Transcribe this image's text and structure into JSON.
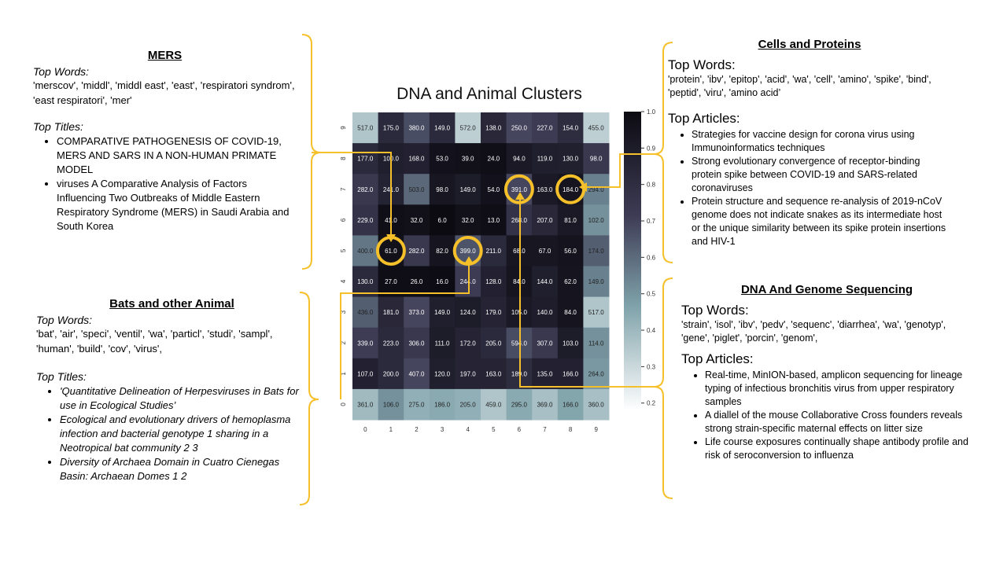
{
  "mers": {
    "heading": "MERS",
    "words_label": "Top Words:",
    "words": "'merscov', 'middl', 'middl east', 'east', 'respiratori syndrom', 'east respiratori', 'mer'",
    "titles_label": "Top Titles:",
    "titles": [
      "COMPARATIVE PATHOGENESIS OF COVID-19, MERS AND SARS IN A NON-HUMAN PRIMATE MODEL",
      "viruses A Comparative Analysis of Factors Influencing Two Outbreaks of Middle Eastern Respiratory Syndrome (MERS) in Saudi Arabia and South Korea"
    ]
  },
  "bats": {
    "heading": "Bats and other Animal",
    "words_label": "Top Words:",
    "words": "'bat', 'air', 'speci', 'ventil', 'wa', 'particl', 'studi', 'sampl', 'human', 'build', 'cov', 'virus',",
    "titles_label": "Top Titles:",
    "titles": [
      "'Quantitative Delineation of Herpesviruses in Bats for use in Ecological Studies’",
      "Ecological and evolutionary drivers of hemoplasma infection and bacterial genotype 1 sharing in a Neotropical bat community 2 3",
      "Diversity of Archaea Domain in Cuatro Cienegas Basin: Archaean Domes 1 2"
    ]
  },
  "cells": {
    "heading": "Cells and Proteins",
    "words_label": "Top Words:",
    "words": "'protein', 'ibv', 'epitop', 'acid', 'wa', 'cell', 'amino', 'spike', 'bind', 'peptid', 'viru', 'amino acid’",
    "titles_label": "Top Articles:",
    "titles": [
      "Strategies for vaccine design for corona virus using Immunoinformatics techniques",
      "Strong evolutionary convergence of receptor-binding protein spike between COVID-19 and SARS-related coronaviruses",
      "Protein structure and sequence re-analysis of 2019-nCoV genome does not indicate snakes as its intermediate host or the unique similarity between its spike protein insertions and HIV-1"
    ]
  },
  "dna": {
    "heading": "DNA And Genome Sequencing",
    "words_label": "Top Words:",
    "words": "'strain', 'isol', 'ibv', 'pedv', 'sequenc', 'diarrhea', 'wa', 'genotyp', 'gene', 'piglet', 'porcin', 'genom',",
    "titles_label": "Top Articles:",
    "titles": [
      "Real-time, MinION-based, amplicon sequencing for lineage typing of infectious bronchitis virus from upper respiratory samples",
      "A diallel of the mouse Collaborative Cross founders reveals strong strain-specific maternal effects on litter size",
      "Life course exposures continually shape antibody profile and risk of seroconversion to influenza"
    ]
  },
  "colors": {
    "accent": "#f5c02a",
    "cell_text_dark": "#ffffff",
    "cell_text_light": "#222222"
  },
  "chart_data": {
    "type": "heatmap",
    "title": "DNA and Animal Clusters",
    "x_ticks": [
      "0",
      "1",
      "2",
      "3",
      "4",
      "5",
      "6",
      "7",
      "8",
      "9"
    ],
    "y_ticks": [
      "9",
      "8",
      "7",
      "6",
      "5",
      "4",
      "3",
      "2",
      "1",
      "0"
    ],
    "rows": [
      [
        "517.0",
        "175.0",
        "380.0",
        "149.0",
        "572.0",
        "138.0",
        "250.0",
        "227.0",
        "154.0",
        "455.0"
      ],
      [
        "177.0",
        "100.0",
        "168.0",
        "53.0",
        "39.0",
        "24.0",
        "94.0",
        "119.0",
        "130.0",
        "98.0"
      ],
      [
        "282.0",
        "241.0",
        "503.0",
        "98.0",
        "149.0",
        "54.0",
        "391.0",
        "163.0",
        "184.0",
        "294.0"
      ],
      [
        "229.0",
        "41.0",
        "32.0",
        "6.0",
        "32.0",
        "13.0",
        "268.0",
        "207.0",
        "81.0",
        "102.0"
      ],
      [
        "400.0",
        "61.0",
        "282.0",
        "82.0",
        "399.0",
        "211.0",
        "68.0",
        "67.0",
        "56.0",
        "174.0"
      ],
      [
        "130.0",
        "27.0",
        "26.0",
        "16.0",
        "244.0",
        "128.0",
        "84.0",
        "144.0",
        "62.0",
        "149.0"
      ],
      [
        "436.0",
        "181.0",
        "373.0",
        "149.0",
        "124.0",
        "179.0",
        "105.0",
        "140.0",
        "84.0",
        "517.0"
      ],
      [
        "339.0",
        "223.0",
        "306.0",
        "111.0",
        "172.0",
        "205.0",
        "594.0",
        "307.0",
        "103.0",
        "114.0"
      ],
      [
        "107.0",
        "200.0",
        "407.0",
        "120.0",
        "197.0",
        "163.0",
        "189.0",
        "135.0",
        "166.0",
        "264.0"
      ],
      [
        "361.0",
        "106.0",
        "275.0",
        "186.0",
        "205.0",
        "459.0",
        "295.0",
        "369.0",
        "166.0",
        "360.0"
      ]
    ],
    "shade": [
      [
        0.22,
        0.78,
        0.6,
        0.78,
        0.18,
        0.8,
        0.62,
        0.66,
        0.76,
        0.18
      ],
      [
        0.78,
        0.86,
        0.84,
        0.95,
        0.96,
        0.97,
        0.9,
        0.86,
        0.85,
        0.68
      ],
      [
        0.68,
        0.83,
        0.52,
        0.92,
        0.88,
        0.95,
        0.62,
        0.9,
        0.93,
        0.45
      ],
      [
        0.72,
        0.97,
        0.96,
        1.0,
        0.96,
        0.98,
        0.72,
        0.8,
        0.9,
        0.4
      ],
      [
        0.48,
        0.96,
        0.68,
        0.93,
        0.58,
        0.78,
        0.92,
        0.92,
        0.94,
        0.55
      ],
      [
        0.78,
        0.98,
        0.98,
        0.99,
        0.66,
        0.84,
        0.93,
        0.86,
        0.93,
        0.45
      ],
      [
        0.55,
        0.8,
        0.62,
        0.86,
        0.88,
        0.82,
        0.9,
        0.87,
        0.93,
        0.22
      ],
      [
        0.65,
        0.78,
        0.68,
        0.88,
        0.82,
        0.78,
        0.6,
        0.68,
        0.88,
        0.4
      ],
      [
        0.84,
        0.78,
        0.62,
        0.86,
        0.82,
        0.82,
        0.76,
        0.84,
        0.84,
        0.38
      ],
      [
        0.26,
        0.4,
        0.3,
        0.32,
        0.3,
        0.22,
        0.32,
        0.24,
        0.34,
        0.24
      ]
    ],
    "circled": [
      [
        4,
        1
      ],
      [
        4,
        4
      ],
      [
        2,
        6
      ],
      [
        2,
        8
      ]
    ],
    "colorbar": {
      "ticks": [
        "1.0",
        "0.9",
        "0.8",
        "0.7",
        "0.6",
        "0.5",
        "0.4",
        "0.3",
        "0.2"
      ],
      "min": 0.18,
      "max": 1.0
    }
  }
}
